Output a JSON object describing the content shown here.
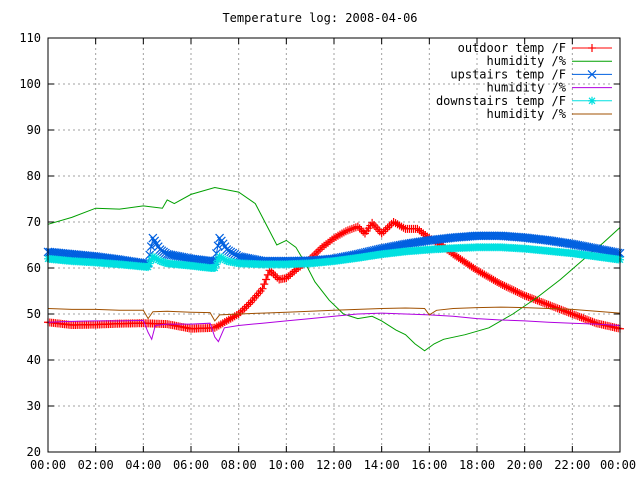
{
  "chart_data": {
    "type": "line",
    "title": "Temperature log: 2008-04-06",
    "xlabel": "",
    "ylabel": "",
    "xlim": [
      0,
      24
    ],
    "ylim": [
      20,
      110
    ],
    "x_tick_labels": [
      "00:00",
      "02:00",
      "04:00",
      "06:00",
      "08:00",
      "10:00",
      "12:00",
      "14:00",
      "16:00",
      "18:00",
      "20:00",
      "22:00",
      "00:00"
    ],
    "y_tick_labels": [
      "20",
      "30",
      "40",
      "50",
      "60",
      "70",
      "80",
      "90",
      "100",
      "110"
    ],
    "grid": true,
    "legend_position": "top-right",
    "series": [
      {
        "name": "outdoor temp /F",
        "color": "#ff0000",
        "marker": "plus",
        "points": [
          [
            0,
            48.2
          ],
          [
            1,
            47.6
          ],
          [
            2,
            47.7
          ],
          [
            3,
            47.9
          ],
          [
            4,
            48.0
          ],
          [
            5,
            47.8
          ],
          [
            6,
            46.8
          ],
          [
            7,
            47.0
          ],
          [
            7.5,
            48.5
          ],
          [
            8,
            50.0
          ],
          [
            8.5,
            52.5
          ],
          [
            9,
            55.5
          ],
          [
            9.3,
            59.5
          ],
          [
            9.7,
            57.5
          ],
          [
            10,
            57.8
          ],
          [
            10.5,
            60.0
          ],
          [
            11,
            62.0
          ],
          [
            11.5,
            64.5
          ],
          [
            12,
            66.5
          ],
          [
            12.5,
            68.0
          ],
          [
            13,
            69.0
          ],
          [
            13.3,
            67.5
          ],
          [
            13.6,
            69.8
          ],
          [
            14,
            67.5
          ],
          [
            14.5,
            70.0
          ],
          [
            15,
            68.5
          ],
          [
            15.5,
            68.5
          ],
          [
            16,
            66.5
          ],
          [
            16.5,
            65.0
          ],
          [
            17,
            63.0
          ],
          [
            18,
            59.5
          ],
          [
            19,
            56.5
          ],
          [
            20,
            54.0
          ],
          [
            21,
            52.0
          ],
          [
            22,
            50.0
          ],
          [
            23,
            48.0
          ],
          [
            24,
            46.8
          ]
        ]
      },
      {
        "name": "humidity /%",
        "color": "#00a000",
        "marker": "none",
        "points": [
          [
            0,
            69.5
          ],
          [
            1,
            71.0
          ],
          [
            2,
            73.0
          ],
          [
            3,
            72.8
          ],
          [
            4,
            73.5
          ],
          [
            4.8,
            73.0
          ],
          [
            5.0,
            74.8
          ],
          [
            5.3,
            74.0
          ],
          [
            6,
            76.0
          ],
          [
            7,
            77.5
          ],
          [
            8,
            76.5
          ],
          [
            8.7,
            74.0
          ],
          [
            9.2,
            69.0
          ],
          [
            9.6,
            65.0
          ],
          [
            10,
            66.0
          ],
          [
            10.4,
            64.5
          ],
          [
            10.8,
            61.0
          ],
          [
            11.2,
            57.0
          ],
          [
            11.8,
            53.0
          ],
          [
            12.4,
            50.0
          ],
          [
            13,
            49.0
          ],
          [
            13.6,
            49.5
          ],
          [
            14,
            48.5
          ],
          [
            14.6,
            46.5
          ],
          [
            15,
            45.5
          ],
          [
            15.4,
            43.5
          ],
          [
            15.8,
            42.0
          ],
          [
            16.2,
            43.5
          ],
          [
            16.6,
            44.5
          ],
          [
            17.5,
            45.5
          ],
          [
            18.5,
            47.0
          ],
          [
            19.5,
            50.0
          ],
          [
            20.5,
            53.5
          ],
          [
            21.5,
            57.5
          ],
          [
            22.5,
            62.0
          ],
          [
            23.3,
            65.5
          ],
          [
            24,
            68.8
          ]
        ]
      },
      {
        "name": "upstairs temp /F",
        "color": "#0060e0",
        "marker": "x",
        "points": [
          [
            0,
            63.5
          ],
          [
            1,
            63.0
          ],
          [
            2,
            62.5
          ],
          [
            3,
            61.8
          ],
          [
            4,
            61.0
          ],
          [
            4.2,
            61.0
          ],
          [
            4.4,
            66.5
          ],
          [
            4.7,
            64.0
          ],
          [
            5,
            63.0
          ],
          [
            6,
            62.0
          ],
          [
            6.8,
            61.5
          ],
          [
            7.0,
            61.5
          ],
          [
            7.2,
            66.5
          ],
          [
            7.5,
            64.0
          ],
          [
            8,
            62.5
          ],
          [
            9,
            61.5
          ],
          [
            10,
            61.5
          ],
          [
            11,
            61.6
          ],
          [
            12,
            62.0
          ],
          [
            13,
            63.0
          ],
          [
            14,
            64.2
          ],
          [
            15,
            65.2
          ],
          [
            16,
            66.0
          ],
          [
            17,
            66.6
          ],
          [
            18,
            67.0
          ],
          [
            19,
            67.0
          ],
          [
            20,
            66.6
          ],
          [
            21,
            66.0
          ],
          [
            22,
            65.2
          ],
          [
            23,
            64.2
          ],
          [
            24,
            63.2
          ]
        ]
      },
      {
        "name": "humidity /%",
        "color": "#b000e0",
        "marker": "none",
        "points": [
          [
            0,
            48.2
          ],
          [
            1,
            48.4
          ],
          [
            2,
            48.5
          ],
          [
            3,
            48.5
          ],
          [
            4,
            48.6
          ],
          [
            4.2,
            46.0
          ],
          [
            4.35,
            44.5
          ],
          [
            4.5,
            47.5
          ],
          [
            5,
            47.8
          ],
          [
            6,
            47.8
          ],
          [
            6.8,
            48.0
          ],
          [
            7.0,
            45.0
          ],
          [
            7.15,
            44.0
          ],
          [
            7.4,
            47.0
          ],
          [
            8,
            47.5
          ],
          [
            9,
            48.0
          ],
          [
            10,
            48.5
          ],
          [
            11,
            49.0
          ],
          [
            12,
            49.5
          ],
          [
            13,
            50.0
          ],
          [
            14,
            50.2
          ],
          [
            15,
            50.0
          ],
          [
            16,
            49.8
          ],
          [
            17,
            49.5
          ],
          [
            18,
            49.0
          ],
          [
            19,
            48.7
          ],
          [
            20,
            48.5
          ],
          [
            21,
            48.2
          ],
          [
            22,
            48.0
          ],
          [
            23,
            47.8
          ],
          [
            24,
            47.5
          ]
        ]
      },
      {
        "name": "downstairs temp /F",
        "color": "#00e0e0",
        "marker": "star",
        "points": [
          [
            0,
            62.0
          ],
          [
            1,
            61.5
          ],
          [
            2,
            61.2
          ],
          [
            3,
            60.8
          ],
          [
            4,
            60.3
          ],
          [
            4.2,
            60.2
          ],
          [
            4.4,
            62.5
          ],
          [
            4.7,
            61.5
          ],
          [
            5,
            61.0
          ],
          [
            6,
            60.5
          ],
          [
            6.8,
            60.0
          ],
          [
            7.0,
            60.0
          ],
          [
            7.2,
            62.5
          ],
          [
            7.5,
            61.5
          ],
          [
            8,
            61.0
          ],
          [
            9,
            60.8
          ],
          [
            10,
            60.8
          ],
          [
            11,
            61.0
          ],
          [
            12,
            61.5
          ],
          [
            13,
            62.2
          ],
          [
            14,
            63.0
          ],
          [
            15,
            63.6
          ],
          [
            16,
            64.0
          ],
          [
            17,
            64.3
          ],
          [
            18,
            64.5
          ],
          [
            19,
            64.5
          ],
          [
            20,
            64.2
          ],
          [
            21,
            63.7
          ],
          [
            22,
            63.2
          ],
          [
            23,
            62.5
          ],
          [
            24,
            61.8
          ]
        ]
      },
      {
        "name": "humidity /%",
        "color": "#a05000",
        "marker": "none",
        "points": [
          [
            0,
            51.2
          ],
          [
            1,
            51.0
          ],
          [
            2,
            51.0
          ],
          [
            3,
            50.8
          ],
          [
            4,
            50.8
          ],
          [
            4.2,
            49.0
          ],
          [
            4.4,
            50.5
          ],
          [
            5,
            50.6
          ],
          [
            6,
            50.4
          ],
          [
            6.8,
            50.3
          ],
          [
            7.0,
            48.5
          ],
          [
            7.2,
            49.8
          ],
          [
            8,
            50.0
          ],
          [
            9,
            50.2
          ],
          [
            10,
            50.4
          ],
          [
            11,
            50.6
          ],
          [
            12,
            50.8
          ],
          [
            13,
            51.0
          ],
          [
            14,
            51.2
          ],
          [
            15,
            51.3
          ],
          [
            15.8,
            51.2
          ],
          [
            16.0,
            49.8
          ],
          [
            16.3,
            50.8
          ],
          [
            17,
            51.2
          ],
          [
            18,
            51.4
          ],
          [
            19,
            51.5
          ],
          [
            20,
            51.4
          ],
          [
            21,
            51.2
          ],
          [
            22,
            51.0
          ],
          [
            23,
            50.6
          ],
          [
            24,
            50.2
          ]
        ]
      }
    ]
  }
}
